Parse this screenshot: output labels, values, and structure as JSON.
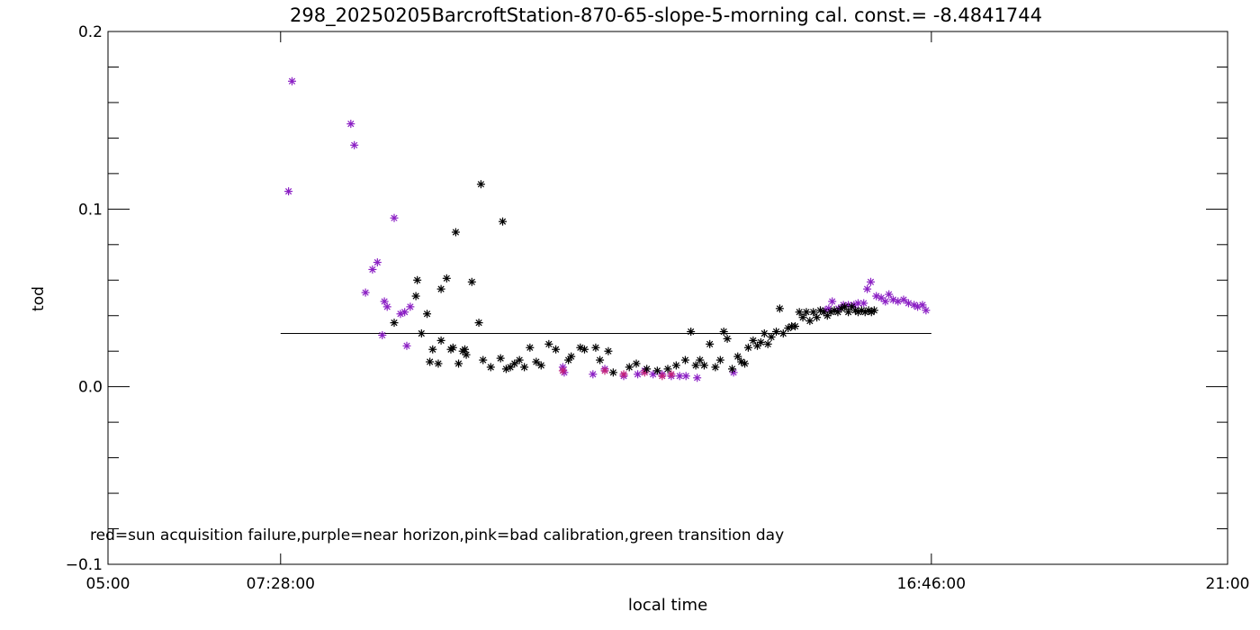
{
  "chart_data": {
    "type": "scatter",
    "title": "298_20250205BarcroftStation-870-65-slope-5-morning cal. const.= -8.4841744",
    "xlabel": "local time",
    "ylabel": "tod",
    "xlim_hours": [
      5.0,
      21.0
    ],
    "ylim": [
      -0.1,
      0.2
    ],
    "x_ticks": [
      {
        "hour": 5.0,
        "label": "05:00"
      },
      {
        "hour": 7.4667,
        "label": "07:28:00"
      },
      {
        "hour": 16.7667,
        "label": "16:46:00"
      },
      {
        "hour": 21.0,
        "label": "21:00"
      }
    ],
    "y_ticks": [
      {
        "value": -0.1,
        "label": "−0.1"
      },
      {
        "value": 0.0,
        "label": "0.0"
      },
      {
        "value": 0.1,
        "label": "0.1"
      },
      {
        "value": 0.2,
        "label": "0.2"
      }
    ],
    "reference_line": {
      "x_start_hour": 7.4667,
      "x_end_hour": 16.7667,
      "y": 0.03
    },
    "annotation": "red=sun acquisition failure,purple=near horizon,pink=bad calibration,green transition day",
    "colors": {
      "black": "#000000",
      "purple": "#8b1fc4",
      "pink": "#c2207a"
    },
    "series": [
      {
        "color": "purple",
        "points": [
          [
            7.58,
            0.11
          ],
          [
            7.63,
            0.172
          ],
          [
            8.47,
            0.148
          ],
          [
            8.52,
            0.136
          ],
          [
            8.68,
            0.053
          ],
          [
            8.78,
            0.066
          ],
          [
            8.85,
            0.07
          ],
          [
            8.92,
            0.029
          ],
          [
            8.95,
            0.048
          ],
          [
            8.99,
            0.045
          ],
          [
            9.09,
            0.095
          ],
          [
            9.18,
            0.041
          ],
          [
            9.24,
            0.042
          ],
          [
            9.27,
            0.023
          ],
          [
            9.32,
            0.045
          ],
          [
            11.5,
            0.011
          ],
          [
            11.52,
            0.008
          ],
          [
            11.93,
            0.007
          ],
          [
            12.1,
            0.01
          ],
          [
            12.37,
            0.006
          ],
          [
            12.57,
            0.007
          ],
          [
            12.67,
            0.009
          ],
          [
            12.79,
            0.007
          ],
          [
            12.92,
            0.007
          ],
          [
            13.05,
            0.006
          ],
          [
            13.17,
            0.006
          ],
          [
            13.26,
            0.006
          ],
          [
            13.42,
            0.005
          ],
          [
            13.94,
            0.008
          ],
          [
            15.25,
            0.043
          ],
          [
            15.3,
            0.044
          ],
          [
            15.35,
            0.048
          ],
          [
            15.44,
            0.044
          ],
          [
            15.51,
            0.046
          ],
          [
            15.58,
            0.046
          ],
          [
            15.66,
            0.046
          ],
          [
            15.72,
            0.047
          ],
          [
            15.8,
            0.047
          ],
          [
            15.85,
            0.055
          ],
          [
            15.9,
            0.059
          ],
          [
            15.98,
            0.051
          ],
          [
            16.05,
            0.05
          ],
          [
            16.11,
            0.048
          ],
          [
            16.16,
            0.052
          ],
          [
            16.22,
            0.049
          ],
          [
            16.29,
            0.048
          ],
          [
            16.37,
            0.049
          ],
          [
            16.44,
            0.047
          ],
          [
            16.52,
            0.046
          ],
          [
            16.57,
            0.045
          ],
          [
            16.64,
            0.046
          ],
          [
            16.69,
            0.043
          ]
        ]
      },
      {
        "color": "pink",
        "points": [
          [
            11.5,
            0.009
          ],
          [
            12.1,
            0.009
          ],
          [
            12.37,
            0.007
          ],
          [
            12.67,
            0.008
          ],
          [
            12.92,
            0.006
          ],
          [
            13.05,
            0.007
          ]
        ]
      },
      {
        "color": "black",
        "points": [
          [
            9.09,
            0.036
          ],
          [
            9.4,
            0.051
          ],
          [
            9.42,
            0.06
          ],
          [
            9.48,
            0.03
          ],
          [
            9.56,
            0.041
          ],
          [
            9.6,
            0.014
          ],
          [
            9.64,
            0.021
          ],
          [
            9.72,
            0.013
          ],
          [
            9.76,
            0.055
          ],
          [
            9.76,
            0.026
          ],
          [
            9.84,
            0.061
          ],
          [
            9.9,
            0.021
          ],
          [
            9.93,
            0.022
          ],
          [
            9.97,
            0.087
          ],
          [
            10.01,
            0.013
          ],
          [
            10.07,
            0.02
          ],
          [
            10.1,
            0.021
          ],
          [
            10.12,
            0.018
          ],
          [
            10.2,
            0.059
          ],
          [
            10.3,
            0.036
          ],
          [
            10.33,
            0.114
          ],
          [
            10.36,
            0.015
          ],
          [
            10.47,
            0.011
          ],
          [
            10.61,
            0.016
          ],
          [
            10.64,
            0.093
          ],
          [
            10.69,
            0.01
          ],
          [
            10.75,
            0.011
          ],
          [
            10.81,
            0.013
          ],
          [
            10.88,
            0.015
          ],
          [
            10.95,
            0.011
          ],
          [
            11.03,
            0.022
          ],
          [
            11.12,
            0.014
          ],
          [
            11.19,
            0.012
          ],
          [
            11.3,
            0.024
          ],
          [
            11.4,
            0.021
          ],
          [
            11.58,
            0.015
          ],
          [
            11.62,
            0.017
          ],
          [
            11.75,
            0.022
          ],
          [
            11.81,
            0.021
          ],
          [
            11.97,
            0.022
          ],
          [
            12.03,
            0.015
          ],
          [
            12.15,
            0.02
          ],
          [
            12.22,
            0.008
          ],
          [
            12.45,
            0.011
          ],
          [
            12.55,
            0.013
          ],
          [
            12.7,
            0.01
          ],
          [
            12.85,
            0.009
          ],
          [
            13.0,
            0.01
          ],
          [
            13.12,
            0.012
          ],
          [
            13.25,
            0.015
          ],
          [
            13.33,
            0.031
          ],
          [
            13.4,
            0.012
          ],
          [
            13.46,
            0.015
          ],
          [
            13.52,
            0.012
          ],
          [
            13.6,
            0.024
          ],
          [
            13.68,
            0.011
          ],
          [
            13.75,
            0.015
          ],
          [
            13.8,
            0.031
          ],
          [
            13.85,
            0.027
          ],
          [
            13.92,
            0.01
          ],
          [
            14.0,
            0.017
          ],
          [
            14.05,
            0.014
          ],
          [
            14.1,
            0.013
          ],
          [
            14.15,
            0.022
          ],
          [
            14.22,
            0.026
          ],
          [
            14.28,
            0.023
          ],
          [
            14.33,
            0.025
          ],
          [
            14.38,
            0.03
          ],
          [
            14.43,
            0.024
          ],
          [
            14.48,
            0.028
          ],
          [
            14.55,
            0.031
          ],
          [
            14.6,
            0.044
          ],
          [
            14.65,
            0.03
          ],
          [
            14.72,
            0.033
          ],
          [
            14.77,
            0.034
          ],
          [
            14.82,
            0.034
          ],
          [
            14.88,
            0.042
          ],
          [
            14.93,
            0.039
          ],
          [
            14.98,
            0.042
          ],
          [
            15.03,
            0.037
          ],
          [
            15.08,
            0.042
          ],
          [
            15.13,
            0.039
          ],
          [
            15.18,
            0.043
          ],
          [
            15.23,
            0.042
          ],
          [
            15.28,
            0.04
          ],
          [
            15.33,
            0.042
          ],
          [
            15.38,
            0.043
          ],
          [
            15.43,
            0.042
          ],
          [
            15.48,
            0.044
          ],
          [
            15.53,
            0.045
          ],
          [
            15.58,
            0.042
          ],
          [
            15.63,
            0.045
          ],
          [
            15.68,
            0.043
          ],
          [
            15.72,
            0.042
          ],
          [
            15.77,
            0.043
          ],
          [
            15.82,
            0.042
          ],
          [
            15.87,
            0.043
          ],
          [
            15.91,
            0.042
          ],
          [
            15.95,
            0.043
          ]
        ]
      }
    ]
  }
}
